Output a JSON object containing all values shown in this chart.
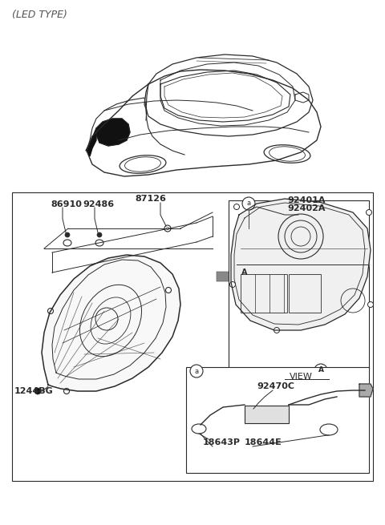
{
  "bg_color": "#ffffff",
  "line_color": "#2a2a2a",
  "labels": {
    "led_type": "(LED TYPE)",
    "86910": "86910",
    "92486": "92486",
    "87126": "87126",
    "92401A": "92401A",
    "92402A": "92402A",
    "1244BG": "1244BG",
    "92470C": "92470C",
    "18643P": "18643P",
    "18644E": "18644E",
    "VIEW_A": "VIEW"
  },
  "font_size_label": 8,
  "font_size_title": 9
}
